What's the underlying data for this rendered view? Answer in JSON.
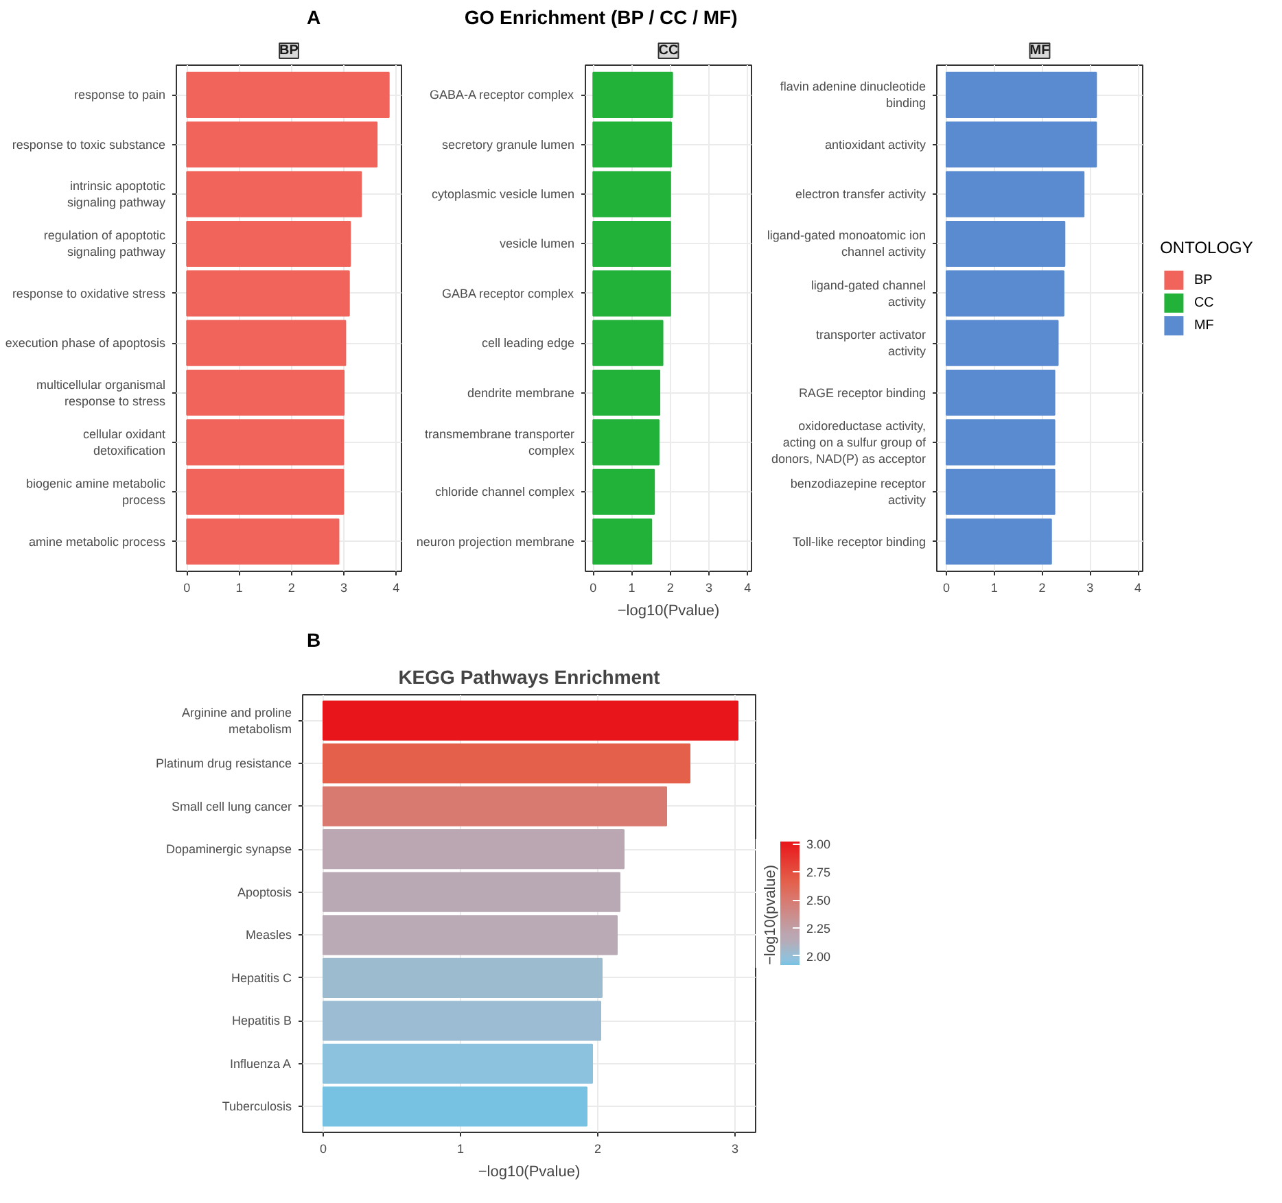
{
  "chart_data": [
    {
      "type": "bar",
      "orientation": "horizontal",
      "title": "BP",
      "annotations": [
        "A",
        "GO Enrichment (BP / CC / MF)"
      ],
      "grid": true,
      "xlim": [
        -0.2,
        4.1
      ],
      "xticks": [
        0,
        1,
        2,
        3,
        4
      ],
      "color": "#f0645c",
      "categories": [
        "response to pain",
        "response to toxic substance",
        "intrinsic apoptotic signaling pathway",
        "regulation of apoptotic signaling pathway",
        "response to oxidative stress",
        "execution phase of apoptosis",
        "multicellular organismal response to stress",
        "cellular oxidant detoxification",
        "biogenic amine metabolic process",
        "amine metabolic process"
      ],
      "values": [
        3.86,
        3.63,
        3.33,
        3.12,
        3.1,
        3.03,
        3.0,
        2.99,
        2.99,
        2.9
      ]
    },
    {
      "type": "bar",
      "orientation": "horizontal",
      "title": "CC",
      "xlabel": "−log10(Pvalue)",
      "grid": true,
      "xlim": [
        -0.2,
        4.1
      ],
      "xticks": [
        0,
        1,
        2,
        3,
        4
      ],
      "color": "#22b23a",
      "categories": [
        "GABA-A receptor complex",
        "secretory granule lumen",
        "cytoplasmic vesicle lumen",
        "vesicle lumen",
        "GABA receptor complex",
        "cell leading edge",
        "dendrite membrane",
        "transmembrane transporter complex",
        "chloride channel complex",
        "neuron projection membrane"
      ],
      "values": [
        2.05,
        2.02,
        2.0,
        2.0,
        2.0,
        1.8,
        1.72,
        1.7,
        1.58,
        1.51
      ]
    },
    {
      "type": "bar",
      "orientation": "horizontal",
      "title": "MF",
      "grid": true,
      "xlim": [
        -0.2,
        4.1
      ],
      "xticks": [
        0,
        1,
        2,
        3,
        4
      ],
      "color": "#5a8bd0",
      "categories": [
        "flavin adenine dinucleotide binding",
        "antioxidant activity",
        "electron transfer activity",
        "ligand-gated monoatomic ion channel activity",
        "ligand-gated channel activity",
        "transporter activator activity",
        "RAGE receptor binding",
        "oxidoreductase activity, acting on a sulfur group of donors, NAD(P) as acceptor",
        "benzodiazepine receptor activity",
        "Toll-like receptor binding"
      ],
      "values": [
        3.13,
        3.13,
        2.87,
        2.47,
        2.45,
        2.33,
        2.26,
        2.26,
        2.26,
        2.19
      ]
    },
    {
      "type": "other",
      "legend": "right",
      "legend_title": "ONTOLOGY",
      "series": [
        {
          "name": "BP",
          "color": "#f0645c"
        },
        {
          "name": "CC",
          "color": "#22b23a"
        },
        {
          "name": "MF",
          "color": "#5a8bd0"
        }
      ]
    },
    {
      "type": "bar",
      "orientation": "horizontal",
      "title": "KEGG Pathways Enrichment",
      "xlabel": "−log10(Pvalue)",
      "annotations": [
        "B"
      ],
      "clabel": "−log10(pvalue)",
      "clim": [
        1.92,
        3.02
      ],
      "cticks": [
        {
          "value": 2,
          "label": "2.00"
        },
        {
          "value": 2.25,
          "label": "2.25"
        },
        {
          "value": 2.5,
          "label": "2.50"
        },
        {
          "value": 2.75,
          "label": "2.75"
        },
        {
          "value": 3,
          "label": "3.00"
        }
      ],
      "grid": true,
      "xlim": [
        -0.15,
        3.15
      ],
      "xticks": [
        0,
        1,
        2,
        3
      ],
      "categories": [
        "Arginine and proline metabolism",
        "Platinum drug resistance",
        "Small cell lung cancer",
        "Dopaminergic synapse",
        "Apoptosis",
        "Measles",
        "Hepatitis C",
        "Hepatitis B",
        "Influenza A",
        "Tuberculosis"
      ],
      "values": [
        3.02,
        2.67,
        2.5,
        2.19,
        2.16,
        2.14,
        2.03,
        2.02,
        1.96,
        1.92
      ],
      "colors": [
        "#e8161b",
        "#e4604a",
        "#d97a70",
        "#bba7b2",
        "#b9a9b5",
        "#b9aab6",
        "#9dbbcf",
        "#9bbcd2",
        "#8dc2df",
        "#77c2e3"
      ]
    }
  ]
}
